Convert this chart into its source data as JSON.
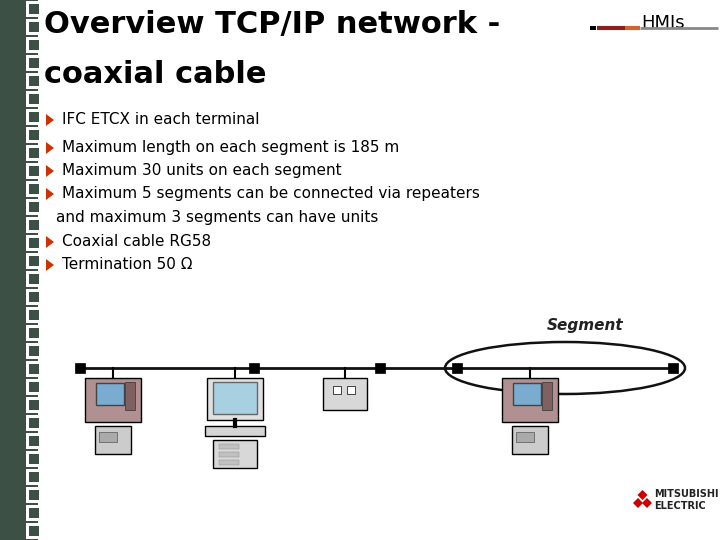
{
  "bg_color": "#e8e8e8",
  "slide_bg": "#ffffff",
  "left_border_color": "#3d5045",
  "title_line1": "Overview TCP/IP network -",
  "title_line2": "coaxial cable",
  "title_color": "#000000",
  "title_fontsize": 22,
  "hmis_label": "HMIs",
  "hmis_color": "#000000",
  "hmis_fontsize": 13,
  "bullet_color": "#cc3300",
  "bullets": [
    "IFC ETCX in each terminal",
    "Maximum length on each segment is 185 m",
    "Maximum 30 units on each segment",
    "Maximum 5 segments can be connected via repeaters",
    "and maximum 3 segments can have units",
    "Coaxial cable RG58",
    "Termination 50 Ω"
  ],
  "bullet_has_marker": [
    true,
    true,
    true,
    true,
    false,
    true,
    true
  ],
  "bullet_fontsize": 11,
  "segment_label": "Segment",
  "segment_color": "#222222",
  "segment_fontsize": 11,
  "diagram_line_color": "#111111",
  "mitsubishi_red": "#cc0000",
  "mitsubishi_text": "MITSUBISHI\nELECTRIC",
  "mitsubishi_fontsize": 7,
  "header_line_colors": [
    "#8b0000",
    "#cc6600",
    "#666666"
  ],
  "border_width": 38
}
